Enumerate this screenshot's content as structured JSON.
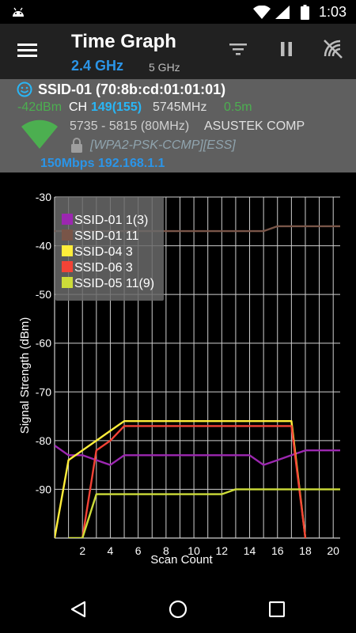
{
  "status_bar": {
    "time": "1:03",
    "icons": [
      "android-notification-icon",
      "wifi-signal-icon",
      "cell-signal-icon",
      "battery-icon"
    ]
  },
  "app_bar": {
    "title": "Time Graph",
    "band_selected": "2.4 GHz",
    "band_other": "5 GHz",
    "actions": [
      "filter-icon",
      "pause-icon",
      "wifi-scan-icon"
    ]
  },
  "access_point": {
    "ssid": "SSID-01 (70:8b:cd:01:01:01)",
    "signal": "-42dBm",
    "ch_label": "CH",
    "channel": "149(155)",
    "frequency": "5745MHz",
    "distance": "0.5m",
    "freq_range": "5735 - 5815 (80MHz)",
    "vendor": "ASUSTEK COMP",
    "security": "[WPA2-PSK-CCMP][ESS]",
    "link": "150Mbps 192.168.1.1",
    "colors": {
      "ssid": "#ffffff",
      "signal": "#4caf50",
      "channel": "#29b6f6",
      "distance": "#4caf50",
      "link": "#2b95e8",
      "security": "#90a4ae"
    }
  },
  "chart_data": {
    "type": "line",
    "xlabel": "Scan Count",
    "ylabel": "Signal Strength (dBm)",
    "xlim": [
      0,
      20.5
    ],
    "ylim": [
      -100,
      -30
    ],
    "x_ticks": [
      2,
      4,
      6,
      8,
      10,
      12,
      14,
      16,
      18,
      20
    ],
    "y_ticks": [
      -30,
      -40,
      -50,
      -60,
      -70,
      -80,
      -90
    ],
    "grid": true,
    "legend_position": "top-left",
    "series": [
      {
        "name": "SSID-01 1(3)",
        "color": "#9c27b0",
        "points": [
          [
            0,
            -81
          ],
          [
            1,
            -83
          ],
          [
            2,
            -83
          ],
          [
            3,
            -84
          ],
          [
            4,
            -85
          ],
          [
            5,
            -83
          ],
          [
            6,
            -83
          ],
          [
            7,
            -83
          ],
          [
            8,
            -83
          ],
          [
            9,
            -83
          ],
          [
            10,
            -83
          ],
          [
            11,
            -83
          ],
          [
            12,
            -83
          ],
          [
            13,
            -83
          ],
          [
            14,
            -83
          ],
          [
            15,
            -85
          ],
          [
            16,
            -84
          ],
          [
            17,
            -83
          ],
          [
            18,
            -82
          ],
          [
            19,
            -82
          ],
          [
            20,
            -82
          ],
          [
            20.5,
            -82
          ]
        ]
      },
      {
        "name": "SSID-01 11",
        "color": "#795548",
        "points": [
          [
            0,
            -37
          ],
          [
            1,
            -37
          ],
          [
            2,
            -37
          ],
          [
            3,
            -37
          ],
          [
            4,
            -37
          ],
          [
            5,
            -37
          ],
          [
            6,
            -37
          ],
          [
            7,
            -37
          ],
          [
            8,
            -37
          ],
          [
            9,
            -37
          ],
          [
            10,
            -37
          ],
          [
            11,
            -37
          ],
          [
            12,
            -37
          ],
          [
            13,
            -37
          ],
          [
            14,
            -37
          ],
          [
            15,
            -37
          ],
          [
            16,
            -36
          ],
          [
            17,
            -36
          ],
          [
            18,
            -36
          ],
          [
            19,
            -36
          ],
          [
            20,
            -36
          ],
          [
            20.5,
            -36
          ]
        ]
      },
      {
        "name": "SSID-04 3",
        "color": "#ffee3a",
        "points": [
          [
            0,
            -100
          ],
          [
            1,
            -84
          ],
          [
            2,
            -82
          ],
          [
            3,
            -80
          ],
          [
            4,
            -78
          ],
          [
            5,
            -76
          ],
          [
            6,
            -76
          ],
          [
            7,
            -76
          ],
          [
            8,
            -76
          ],
          [
            9,
            -76
          ],
          [
            10,
            -76
          ],
          [
            11,
            -76
          ],
          [
            12,
            -76
          ],
          [
            13,
            -76
          ],
          [
            14,
            -76
          ],
          [
            15,
            -76
          ],
          [
            16,
            -76
          ],
          [
            17,
            -76
          ],
          [
            18,
            -100
          ]
        ]
      },
      {
        "name": "SSID-06 3",
        "color": "#f44336",
        "points": [
          [
            2,
            -100
          ],
          [
            3,
            -82
          ],
          [
            4,
            -80
          ],
          [
            5,
            -77
          ],
          [
            6,
            -77
          ],
          [
            7,
            -77
          ],
          [
            8,
            -77
          ],
          [
            9,
            -77
          ],
          [
            10,
            -77
          ],
          [
            11,
            -77
          ],
          [
            12,
            -77
          ],
          [
            13,
            -77
          ],
          [
            14,
            -77
          ],
          [
            15,
            -77
          ],
          [
            16,
            -77
          ],
          [
            17,
            -77
          ],
          [
            18,
            -100
          ]
        ]
      },
      {
        "name": "SSID-05 11(9)",
        "color": "#cddc39",
        "points": [
          [
            1,
            -100
          ],
          [
            2,
            -100
          ],
          [
            3,
            -91
          ],
          [
            4,
            -91
          ],
          [
            5,
            -91
          ],
          [
            6,
            -91
          ],
          [
            7,
            -91
          ],
          [
            8,
            -91
          ],
          [
            9,
            -91
          ],
          [
            10,
            -91
          ],
          [
            11,
            -91
          ],
          [
            12,
            -91
          ],
          [
            13,
            -90
          ],
          [
            14,
            -90
          ],
          [
            15,
            -90
          ],
          [
            16,
            -90
          ],
          [
            17,
            -90
          ],
          [
            18,
            -90
          ],
          [
            19,
            -90
          ],
          [
            20,
            -90
          ],
          [
            20.5,
            -90
          ]
        ]
      }
    ]
  },
  "nav_bar": {
    "buttons": [
      "back-icon",
      "home-icon",
      "recents-icon"
    ]
  }
}
